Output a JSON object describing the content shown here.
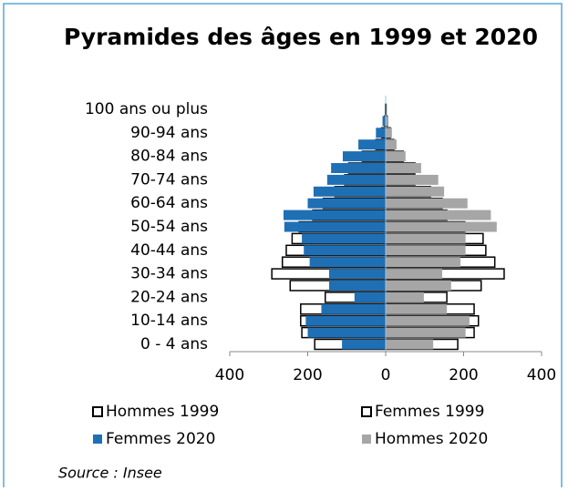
{
  "chart_data": {
    "type": "pyramid",
    "title": "Pyramides des âges en 1999 et 2020",
    "categories": [
      "0 - 4 ans",
      null,
      "10-14 ans",
      null,
      "20-24 ans",
      null,
      "30-34 ans",
      null,
      "40-44 ans",
      null,
      "50-54 ans",
      null,
      "60-64 ans",
      null,
      "70-74 ans",
      null,
      "80-84 ans",
      null,
      "90-94 ans",
      null,
      "100 ans ou plus"
    ],
    "series": [
      {
        "name": "Hommes 1999",
        "color": "#ffffff",
        "edgecolor": "#000000",
        "values": [
          -182,
          -215,
          -218,
          -218,
          -155,
          -245,
          -292,
          -265,
          -255,
          -240,
          -222,
          -187,
          -160,
          -130,
          -105,
          -95,
          -60,
          -25,
          -10,
          -3,
          -0.5
        ]
      },
      {
        "name": "Femmes 1999",
        "color": "#ffffff",
        "edgecolor": "#000000",
        "values": [
          185,
          227,
          238,
          227,
          157,
          245,
          304,
          280,
          257,
          250,
          203,
          157,
          145,
          115,
          75,
          75,
          45,
          21,
          12,
          4,
          1
        ]
      },
      {
        "name": "Femmes 2020",
        "color": "#1f6fb5",
        "values": [
          -112,
          -200,
          -205,
          -165,
          -80,
          -145,
          -145,
          -195,
          -210,
          -215,
          -260,
          -262,
          -200,
          -185,
          -150,
          -140,
          -110,
          -70,
          -25,
          -8,
          -1
        ]
      },
      {
        "name": "Hommes 2020",
        "color": "#a6a6a6",
        "values": [
          122,
          205,
          215,
          157,
          98,
          168,
          145,
          192,
          205,
          205,
          285,
          270,
          210,
          150,
          135,
          91,
          51,
          28,
          16,
          5,
          1
        ]
      }
    ],
    "xlim": [
      -400,
      400
    ],
    "xticks": [
      {
        "value": -400,
        "label": "400"
      },
      {
        "value": -200,
        "label": "200"
      },
      0,
      200,
      400
    ],
    "source": "Source : Insee"
  }
}
